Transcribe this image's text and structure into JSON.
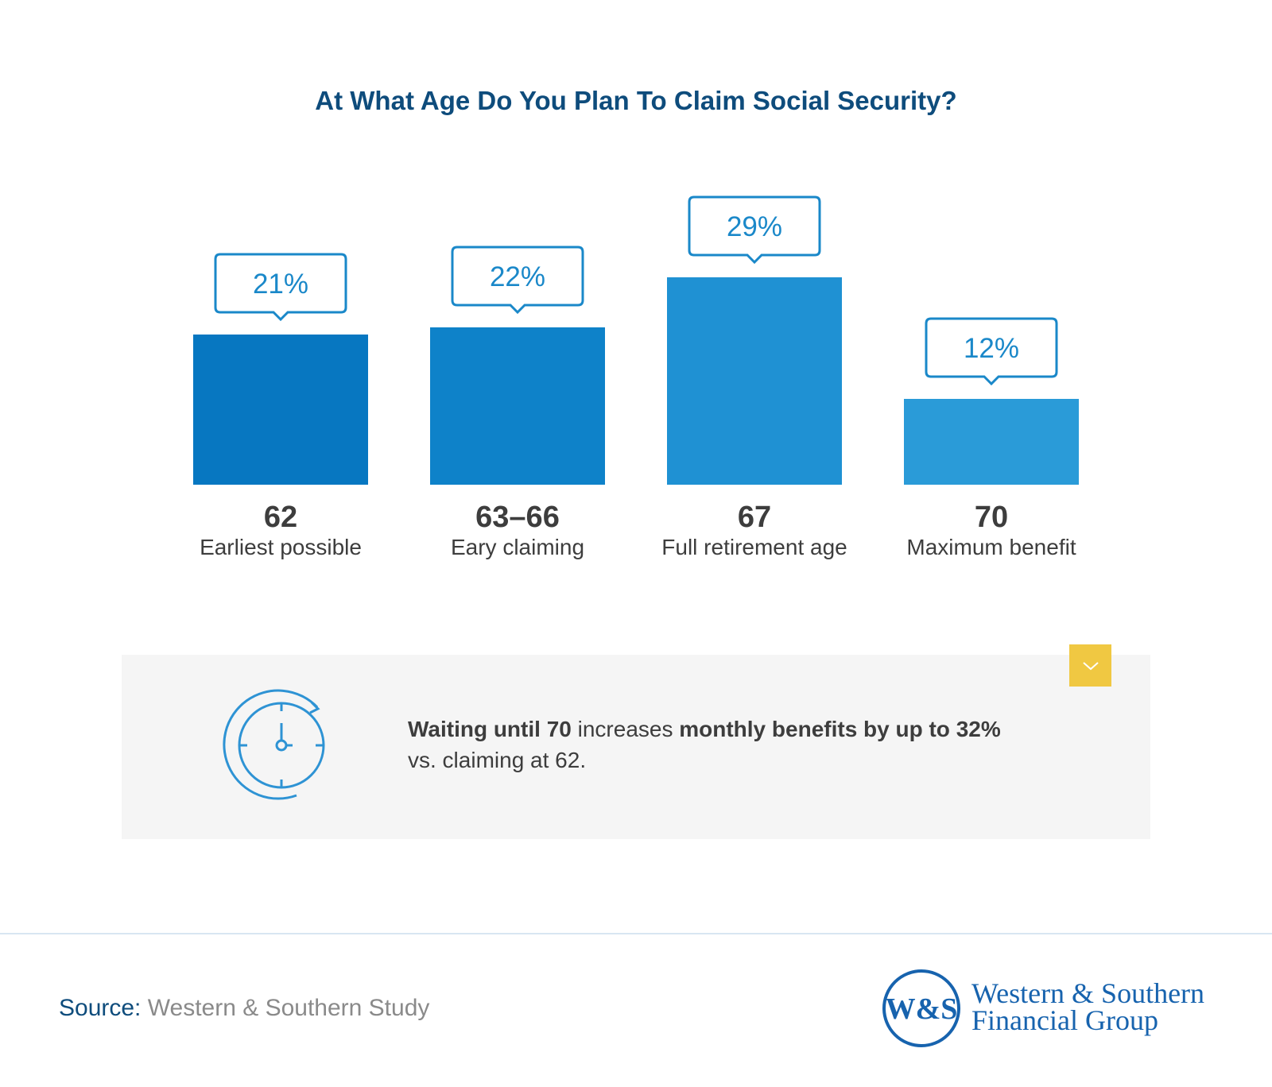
{
  "title": "At What Age Do You Plan To Claim Social Security?",
  "chart_data": {
    "type": "bar",
    "categories": [
      "62",
      "63–66",
      "67",
      "70"
    ],
    "descriptions": [
      "Earliest possible",
      "Eary claiming",
      "Full retirement age",
      "Maximum benefit"
    ],
    "values": [
      21,
      22,
      29,
      12
    ],
    "value_labels": [
      "21%",
      "22%",
      "29%",
      "12%"
    ],
    "ylim": [
      0,
      29
    ],
    "colors": [
      "#0777c1",
      "#0e82c9",
      "#1f91d3",
      "#2a9bd8"
    ],
    "callout_color": "#1a88c9",
    "grid": false,
    "legend": "none"
  },
  "info": {
    "icon": "stopwatch-icon",
    "bold1": "Waiting until 70",
    "text1": " increases ",
    "bold2": "monthly benefits by up to 32%",
    "text2": "vs. claiming at 62.",
    "toggle_icon": "chevron-down-icon",
    "toggle_color": "#f0c842"
  },
  "footer": {
    "source_label": "Source:",
    "source_text": "Western & Southern Study",
    "logo_monogram": "W&S",
    "logo_line1": "Western & Southern",
    "logo_line2": "Financial Group"
  }
}
